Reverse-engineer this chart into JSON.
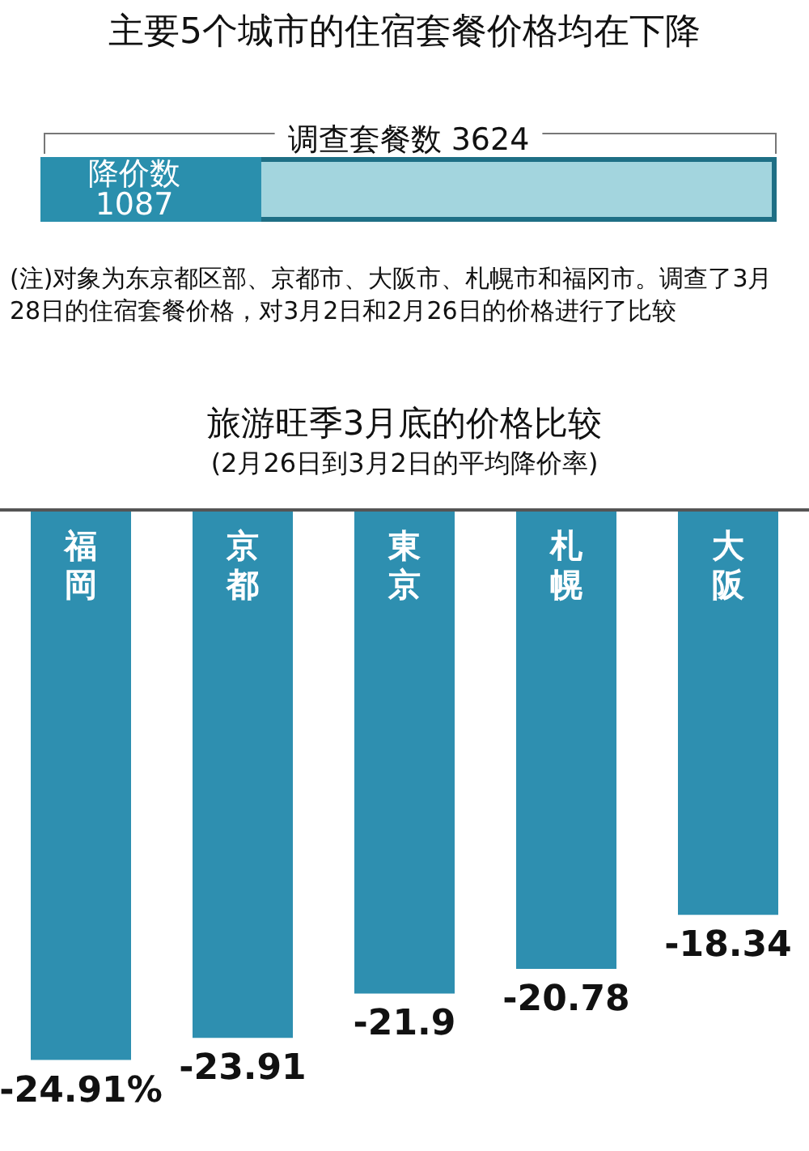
{
  "chart_data": [
    {
      "type": "bar",
      "orientation": "horizontal",
      "title": "主要5个城市的住宿套餐价格均在下降",
      "categories": [
        null
      ],
      "xlim": [
        0,
        3624
      ],
      "tick_labels": false,
      "series": [
        {
          "name": "调查套餐数",
          "color": "#a3d5de",
          "values": [
            3624
          ],
          "value_labels": [
            "3624"
          ]
        },
        {
          "name": "降价数",
          "color": "#2a8fad",
          "values": [
            1087
          ],
          "value_labels": [
            "1087"
          ]
        }
      ],
      "annotations": [
        "(注)对象为东京都区部、京都市、大阪市、札幌市和福冈市。调查了3月28日的住宿套餐价格，对3月2日和2月26日的价格进行了比较"
      ]
    },
    {
      "type": "bar",
      "title": "旅游旺季3月底的价格比较",
      "subtitle": "(2月26日到3月2日的平均降价率)",
      "categories": [
        "福岡",
        "京都",
        "東京",
        "札幌",
        "大阪"
      ],
      "tick_labels": "x",
      "series": [
        {
          "color": "#2e8fb0",
          "values": [
            -24.91,
            -23.91,
            -21.9,
            -20.78,
            -18.34
          ],
          "value_labels": [
            "-24.91%",
            "-23.91",
            "-21.9",
            "-20.78",
            "-18.34"
          ]
        }
      ]
    }
  ]
}
